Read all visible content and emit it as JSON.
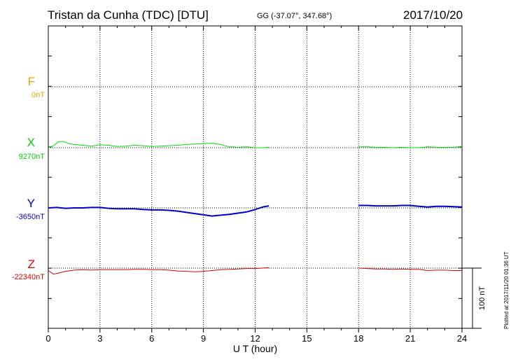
{
  "header": {
    "station": "Tristan da Cunha (TDC)  [DTU]",
    "coords": "GG (-37.07°, 347.68°)",
    "date": "2017/10/20"
  },
  "plotted_note": "Plotted at 2017/11/20 01:36 UT",
  "chart_data": {
    "type": "line",
    "xlabel": "U T (hour)",
    "xlim": [
      0,
      24
    ],
    "x_ticks": [
      0,
      3,
      6,
      9,
      12,
      15,
      18,
      21,
      24
    ],
    "x_tick_labels": [
      "0",
      "3",
      "6",
      "9",
      "12",
      "15",
      "18",
      "21",
      "24"
    ],
    "scale_bar_label": "100 nT",
    "scale_bar_nT": 100,
    "series": [
      {
        "name": "F",
        "baseline_label": "0nT",
        "color": "#f5a000",
        "x": [],
        "y": []
      },
      {
        "name": "X",
        "baseline_label": "9270nT",
        "color": "#00dd00",
        "x": [
          0,
          0.3,
          0.6,
          0.9,
          1.2,
          1.5,
          2,
          2.5,
          3,
          3.5,
          4,
          4.5,
          5,
          5.5,
          6,
          6.5,
          7,
          7.5,
          8,
          8.5,
          9,
          9.5,
          10,
          10.5,
          11,
          11.5,
          12,
          12.5,
          12.8,
          null,
          18,
          18.5,
          19,
          19.5,
          20,
          20.5,
          21,
          21.5,
          22,
          22.5,
          23,
          23.5,
          24
        ],
        "y": [
          9270,
          9275,
          9285,
          9285,
          9280,
          9278,
          9276,
          9274,
          9277,
          9276,
          9273,
          9274,
          9276,
          9275,
          9273,
          9274,
          9275,
          9276,
          9278,
          9279,
          9280,
          9281,
          9278,
          9272,
          9271,
          9272,
          9270,
          9270,
          9271,
          null,
          9272,
          9272,
          9271,
          9271,
          9270,
          9271,
          9270,
          9270,
          9272,
          9271,
          9271,
          9271,
          9273
        ]
      },
      {
        "name": "Y",
        "baseline_label": "-3650nT",
        "color": "#0000cc",
        "x": [
          0,
          0.5,
          1,
          1.5,
          2,
          2.5,
          3,
          3.5,
          4,
          4.5,
          5,
          5.5,
          6,
          6.5,
          7,
          7.5,
          8,
          8.5,
          9,
          9.5,
          10,
          10.5,
          11,
          11.5,
          12,
          12.5,
          12.8,
          null,
          18,
          18.5,
          19,
          19.5,
          20,
          20.5,
          21,
          21.5,
          22,
          22.5,
          23,
          23.5,
          24
        ],
        "y": [
          -3650,
          -3649,
          -3651,
          -3650,
          -3650,
          -3649,
          -3649,
          -3651,
          -3652,
          -3652,
          -3652,
          -3654,
          -3655,
          -3655,
          -3656,
          -3658,
          -3661,
          -3664,
          -3667,
          -3670,
          -3668,
          -3666,
          -3663,
          -3660,
          -3654,
          -3647,
          -3645,
          null,
          -3644,
          -3644,
          -3645,
          -3645,
          -3645,
          -3644,
          -3644,
          -3646,
          -3648,
          -3646,
          -3646,
          -3647,
          -3648
        ]
      },
      {
        "name": "Z",
        "baseline_label": "-22340nT",
        "color": "#e00000",
        "x": [
          0,
          0.3,
          0.6,
          1,
          1.5,
          2,
          2.5,
          3,
          3.5,
          4,
          4.5,
          5,
          5.5,
          6,
          6.5,
          7,
          7.5,
          8,
          8.5,
          9,
          9.5,
          10,
          10.5,
          11,
          11.5,
          12,
          12.8,
          null,
          18,
          18.5,
          19,
          19.5,
          20,
          20.5,
          21,
          21.5,
          22,
          22.5,
          23,
          23.5,
          24
        ],
        "y": [
          -22346,
          -22355,
          -22352,
          -22348,
          -22345,
          -22344,
          -22345,
          -22344,
          -22344,
          -22344,
          -22344,
          -22343,
          -22343,
          -22344,
          -22344,
          -22345,
          -22347,
          -22348,
          -22349,
          -22348,
          -22346,
          -22344,
          -22343,
          -22342,
          -22341,
          -22341,
          -22339,
          null,
          -22340,
          -22341,
          -22342,
          -22342,
          -22343,
          -22342,
          -22343,
          -22343,
          -22346,
          -22345,
          -22345,
          -22346,
          -22346
        ]
      }
    ]
  }
}
